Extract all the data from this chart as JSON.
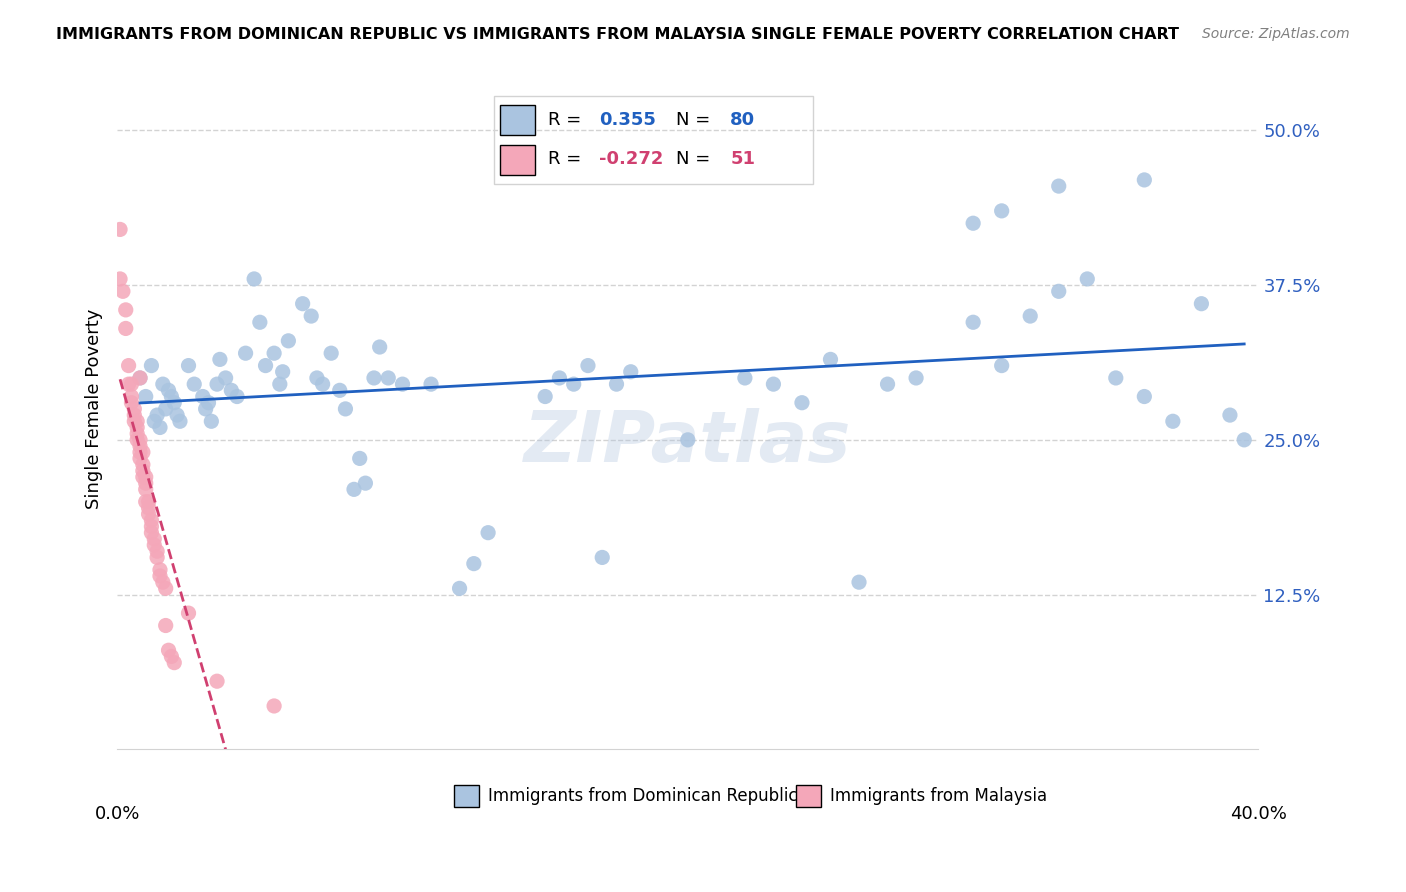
{
  "title": "IMMIGRANTS FROM DOMINICAN REPUBLIC VS IMMIGRANTS FROM MALAYSIA SINGLE FEMALE POVERTY CORRELATION CHART",
  "source": "Source: ZipAtlas.com",
  "ylabel": "Single Female Poverty",
  "ytick_labels": [
    "12.5%",
    "25.0%",
    "37.5%",
    "50.0%"
  ],
  "ytick_values": [
    0.125,
    0.25,
    0.375,
    0.5
  ],
  "xlim": [
    0.0,
    0.4
  ],
  "ylim": [
    0.0,
    0.55
  ],
  "blue_scatter_color": "#aac4e0",
  "pink_scatter_color": "#f4a7b9",
  "blue_line_color": "#2060c0",
  "pink_line_color": "#d04070",
  "watermark": "ZIPatlas",
  "blue_R": "0.355",
  "blue_N": "80",
  "pink_R": "-0.272",
  "pink_N": "51",
  "blue_points": [
    [
      0.008,
      0.3
    ],
    [
      0.01,
      0.285
    ],
    [
      0.012,
      0.31
    ],
    [
      0.013,
      0.265
    ],
    [
      0.014,
      0.27
    ],
    [
      0.015,
      0.26
    ],
    [
      0.016,
      0.295
    ],
    [
      0.017,
      0.275
    ],
    [
      0.018,
      0.29
    ],
    [
      0.019,
      0.285
    ],
    [
      0.02,
      0.28
    ],
    [
      0.021,
      0.27
    ],
    [
      0.022,
      0.265
    ],
    [
      0.025,
      0.31
    ],
    [
      0.027,
      0.295
    ],
    [
      0.03,
      0.285
    ],
    [
      0.031,
      0.275
    ],
    [
      0.032,
      0.28
    ],
    [
      0.033,
      0.265
    ],
    [
      0.035,
      0.295
    ],
    [
      0.036,
      0.315
    ],
    [
      0.038,
      0.3
    ],
    [
      0.04,
      0.29
    ],
    [
      0.042,
      0.285
    ],
    [
      0.045,
      0.32
    ],
    [
      0.048,
      0.38
    ],
    [
      0.05,
      0.345
    ],
    [
      0.052,
      0.31
    ],
    [
      0.055,
      0.32
    ],
    [
      0.057,
      0.295
    ],
    [
      0.058,
      0.305
    ],
    [
      0.06,
      0.33
    ],
    [
      0.065,
      0.36
    ],
    [
      0.068,
      0.35
    ],
    [
      0.07,
      0.3
    ],
    [
      0.072,
      0.295
    ],
    [
      0.075,
      0.32
    ],
    [
      0.078,
      0.29
    ],
    [
      0.08,
      0.275
    ],
    [
      0.083,
      0.21
    ],
    [
      0.085,
      0.235
    ],
    [
      0.087,
      0.215
    ],
    [
      0.09,
      0.3
    ],
    [
      0.092,
      0.325
    ],
    [
      0.095,
      0.3
    ],
    [
      0.1,
      0.295
    ],
    [
      0.11,
      0.295
    ],
    [
      0.12,
      0.13
    ],
    [
      0.125,
      0.15
    ],
    [
      0.13,
      0.175
    ],
    [
      0.15,
      0.285
    ],
    [
      0.155,
      0.3
    ],
    [
      0.16,
      0.295
    ],
    [
      0.165,
      0.31
    ],
    [
      0.17,
      0.155
    ],
    [
      0.175,
      0.295
    ],
    [
      0.18,
      0.305
    ],
    [
      0.2,
      0.25
    ],
    [
      0.22,
      0.3
    ],
    [
      0.23,
      0.295
    ],
    [
      0.24,
      0.28
    ],
    [
      0.25,
      0.315
    ],
    [
      0.26,
      0.135
    ],
    [
      0.27,
      0.295
    ],
    [
      0.28,
      0.3
    ],
    [
      0.3,
      0.345
    ],
    [
      0.31,
      0.31
    ],
    [
      0.32,
      0.35
    ],
    [
      0.33,
      0.37
    ],
    [
      0.34,
      0.38
    ],
    [
      0.35,
      0.3
    ],
    [
      0.36,
      0.285
    ],
    [
      0.37,
      0.265
    ],
    [
      0.38,
      0.36
    ],
    [
      0.39,
      0.27
    ],
    [
      0.395,
      0.25
    ],
    [
      0.33,
      0.455
    ],
    [
      0.36,
      0.46
    ],
    [
      0.3,
      0.425
    ],
    [
      0.31,
      0.435
    ]
  ],
  "pink_points": [
    [
      0.001,
      0.42
    ],
    [
      0.002,
      0.37
    ],
    [
      0.003,
      0.355
    ],
    [
      0.004,
      0.295
    ],
    [
      0.004,
      0.31
    ],
    [
      0.005,
      0.295
    ],
    [
      0.005,
      0.285
    ],
    [
      0.005,
      0.28
    ],
    [
      0.006,
      0.265
    ],
    [
      0.006,
      0.275
    ],
    [
      0.006,
      0.27
    ],
    [
      0.007,
      0.265
    ],
    [
      0.007,
      0.26
    ],
    [
      0.007,
      0.255
    ],
    [
      0.007,
      0.25
    ],
    [
      0.008,
      0.25
    ],
    [
      0.008,
      0.245
    ],
    [
      0.008,
      0.24
    ],
    [
      0.008,
      0.235
    ],
    [
      0.009,
      0.24
    ],
    [
      0.009,
      0.23
    ],
    [
      0.009,
      0.225
    ],
    [
      0.009,
      0.22
    ],
    [
      0.01,
      0.22
    ],
    [
      0.01,
      0.215
    ],
    [
      0.01,
      0.21
    ],
    [
      0.01,
      0.2
    ],
    [
      0.011,
      0.2
    ],
    [
      0.011,
      0.195
    ],
    [
      0.011,
      0.19
    ],
    [
      0.012,
      0.185
    ],
    [
      0.012,
      0.18
    ],
    [
      0.012,
      0.175
    ],
    [
      0.013,
      0.17
    ],
    [
      0.013,
      0.165
    ],
    [
      0.014,
      0.16
    ],
    [
      0.014,
      0.155
    ],
    [
      0.015,
      0.145
    ],
    [
      0.015,
      0.14
    ],
    [
      0.016,
      0.135
    ],
    [
      0.017,
      0.13
    ],
    [
      0.017,
      0.1
    ],
    [
      0.018,
      0.08
    ],
    [
      0.019,
      0.075
    ],
    [
      0.02,
      0.07
    ],
    [
      0.025,
      0.11
    ],
    [
      0.035,
      0.055
    ],
    [
      0.055,
      0.035
    ],
    [
      0.001,
      0.38
    ],
    [
      0.003,
      0.34
    ],
    [
      0.008,
      0.3
    ]
  ]
}
